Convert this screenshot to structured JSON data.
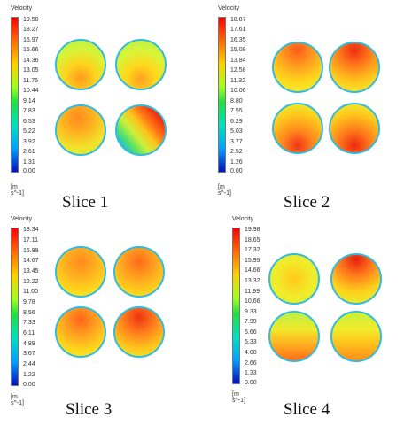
{
  "figure": {
    "panels": [
      {
        "legend_title": "Velocity",
        "ticks": [
          "19.58",
          "18.27",
          "16.97",
          "15.66",
          "14.36",
          "13.05",
          "11.75",
          "10.44",
          "9.14",
          "7.83",
          "6.53",
          "5.22",
          "3.92",
          "2.61",
          "1.31",
          "0.00"
        ],
        "unit": "[m s^-1]",
        "slice_label": "Slice 1"
      },
      {
        "legend_title": "Velocity",
        "ticks": [
          "18.87",
          "17.61",
          "16.35",
          "15.09",
          "13.84",
          "12.58",
          "11.32",
          "10.06",
          "8.80",
          "7.55",
          "6.29",
          "5.03",
          "3.77",
          "2.52",
          "1.26",
          "0.00"
        ],
        "unit": "[m s^-1]",
        "slice_label": "Slice 2"
      },
      {
        "legend_title": "Velocity",
        "ticks": [
          "18.34",
          "17.11",
          "15.89",
          "14.67",
          "13.45",
          "12.22",
          "11.00",
          "9.78",
          "8.56",
          "7.33",
          "6.11",
          "4.89",
          "3.67",
          "2.44",
          "1.22",
          "0.00"
        ],
        "unit": "[m s^-1]",
        "slice_label": "Slice 3"
      },
      {
        "legend_title": "Velocity",
        "ticks": [
          "19.98",
          "18.65",
          "17.32",
          "15.99",
          "14.66",
          "13.32",
          "11.99",
          "10.66",
          "9.33",
          "7.99",
          "6.66",
          "5.33",
          "4.00",
          "2.66",
          "1.33",
          "0.00"
        ],
        "unit": "[m s^-1]",
        "slice_label": "Slice 4"
      }
    ]
  }
}
